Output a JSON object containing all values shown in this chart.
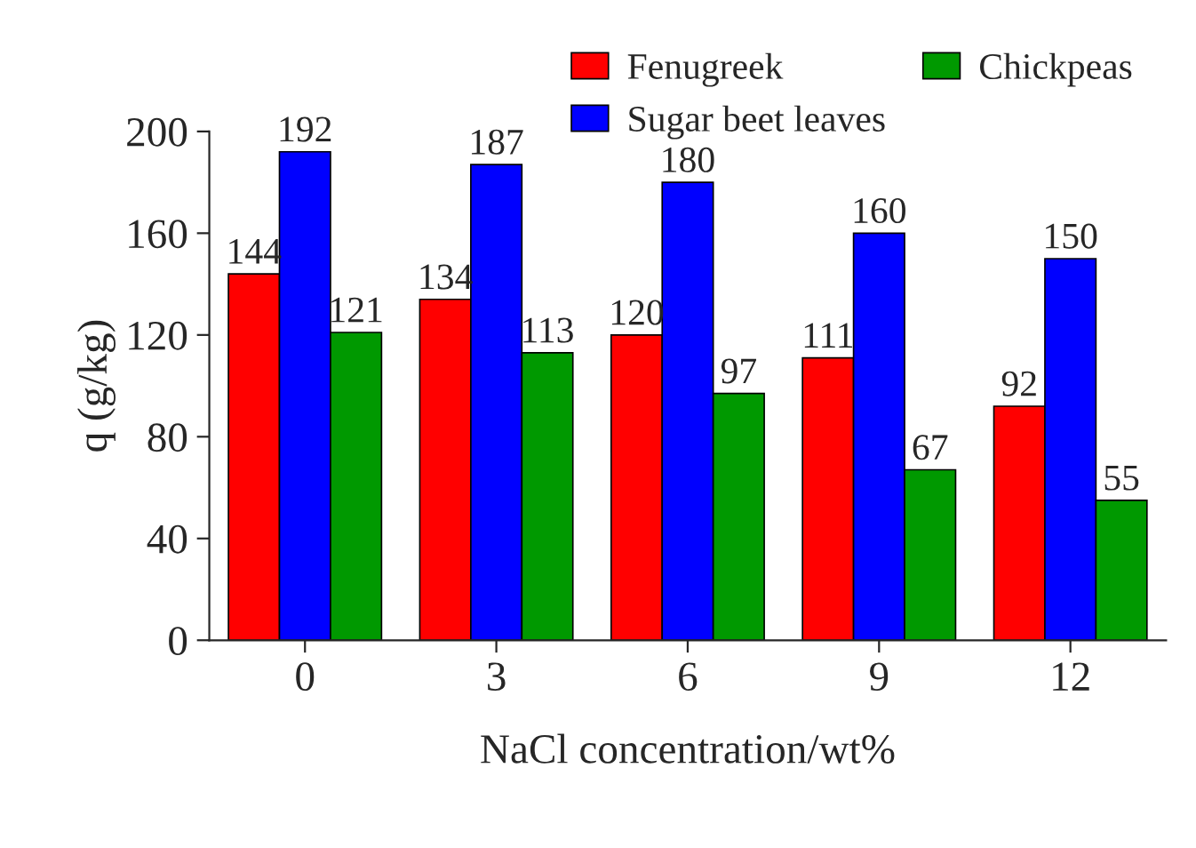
{
  "chart_data": {
    "type": "bar",
    "xlabel": "NaCl concentration/wt%",
    "ylabel": "q (g/kg)",
    "categories": [
      "0",
      "3",
      "6",
      "9",
      "12"
    ],
    "series": [
      {
        "name": "Fenugreek",
        "color": "#ff0000",
        "values": [
          144,
          134,
          120,
          111,
          92
        ]
      },
      {
        "name": "Sugar beet leaves",
        "color": "#0000ff",
        "values": [
          192,
          187,
          180,
          160,
          150
        ]
      },
      {
        "name": "Chickpeas",
        "color": "#009900",
        "values": [
          121,
          113,
          97,
          67,
          55
        ]
      }
    ],
    "ylim": [
      0,
      200
    ],
    "yticks": [
      0,
      40,
      80,
      120,
      160,
      200
    ],
    "data_labels": true,
    "legend": "top right",
    "grid": false
  }
}
